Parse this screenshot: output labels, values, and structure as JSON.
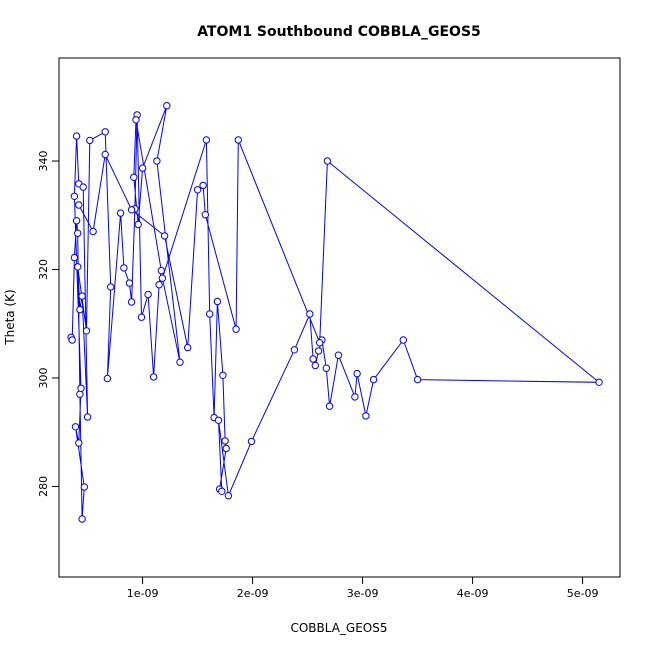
{
  "chart_data": {
    "type": "line",
    "title": "ATOM1 Southbound COBBLA_GEOS5",
    "xlabel": "COBBLA_GEOS5",
    "ylabel": "Theta (K)",
    "xlim": [
      2.4e-10,
      5.34e-09
    ],
    "ylim": [
      263.3,
      359.0
    ],
    "x_ticks": [
      1e-09,
      2e-09,
      3e-09,
      4e-09,
      5e-09
    ],
    "x_tick_labels": [
      "1e-09",
      "2e-09",
      "3e-09",
      "4e-09",
      "5e-09"
    ],
    "y_ticks": [
      280,
      300,
      320,
      340
    ],
    "y_tick_labels": [
      "280",
      "300",
      "320",
      "340"
    ],
    "grid": false,
    "series_color": "#0000ff",
    "marker": "open-circle",
    "x": [
      3.5e-10,
      3.6e-10,
      3.8e-10,
      4e-10,
      4.1e-10,
      4.3e-10,
      4.5e-10,
      4.7e-10,
      3.9e-10,
      4.2e-10,
      4.4e-10,
      3.8e-10,
      4e-10,
      4.2e-10,
      4.6e-10,
      5e-10,
      4.5e-10,
      4.3e-10,
      4.1e-10,
      4.9e-10,
      5.2e-10,
      6.6e-10,
      7.1e-10,
      6.8e-10,
      8e-10,
      8.3e-10,
      8.8e-10,
      9e-10,
      9.3e-10,
      9.5e-10,
      9.9e-10,
      1.05e-09,
      1.1e-09,
      1.15e-09,
      1.17e-09,
      9.4e-10,
      9.2e-10,
      9.6e-10,
      1e-09,
      1.22e-09,
      1.13e-09,
      1.34e-09,
      1.18e-09,
      1.58e-09,
      1.61e-09,
      1.65e-09,
      1.68e-09,
      1.73e-09,
      1.75e-09,
      1.76e-09,
      1.7e-09,
      1.72e-09,
      1.69e-09,
      1.78e-09,
      1.99e-09,
      2.38e-09,
      2.52e-09,
      2.55e-09,
      2.57e-09,
      2.6e-09,
      2.63e-09,
      2.67e-09,
      2.7e-09,
      2.78e-09,
      2.93e-09,
      2.95e-09,
      3.03e-09,
      3.1e-09,
      3.37e-09,
      3.5e-09,
      5.15e-09,
      2.68e-09,
      2.61e-09,
      1.87e-09,
      1.85e-09,
      1.57e-09,
      1.55e-09,
      1.5e-09,
      1.41e-09,
      1.2e-09,
      9e-10,
      6.6e-10,
      5.5e-10,
      4.2e-10
    ],
    "y": [
      307.5,
      307.0,
      322.2,
      329.0,
      326.7,
      297.0,
      274.0,
      279.9,
      291.0,
      288.0,
      298.1,
      333.5,
      344.6,
      335.8,
      335.2,
      292.8,
      315.1,
      312.6,
      320.5,
      308.7,
      343.8,
      345.4,
      316.8,
      299.9,
      330.4,
      320.3,
      317.5,
      314.0,
      331.2,
      348.5,
      311.2,
      315.4,
      300.2,
      317.2,
      319.8,
      347.6,
      337.0,
      328.3,
      338.7,
      350.2,
      340.0,
      302.9,
      318.4,
      343.9,
      311.8,
      292.7,
      314.1,
      300.5,
      288.4,
      287.0,
      279.5,
      279.1,
      292.2,
      278.3,
      288.3,
      305.2,
      311.8,
      303.5,
      302.3,
      305.0,
      307.0,
      301.8,
      294.8,
      304.2,
      296.5,
      300.8,
      293.0,
      299.7,
      307.0,
      299.7,
      299.2,
      340.0,
      306.5,
      343.9,
      309.0,
      330.1,
      335.5,
      334.7,
      305.6,
      326.2,
      331.0,
      341.2,
      327.0,
      331.9
    ]
  }
}
